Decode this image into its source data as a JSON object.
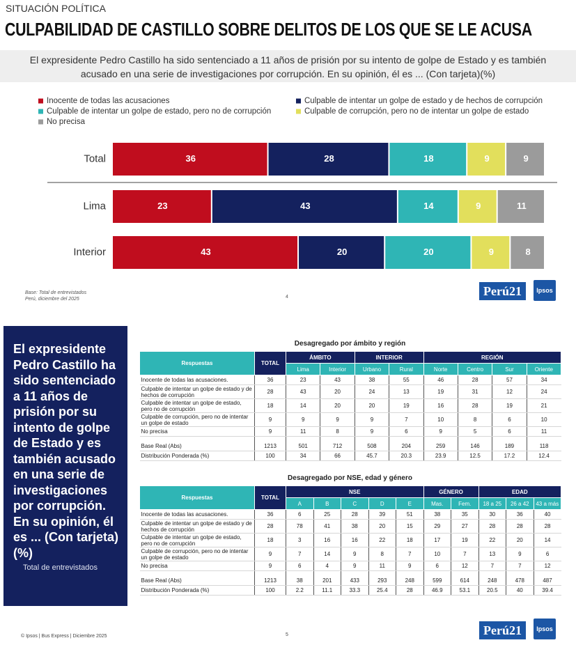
{
  "header": {
    "kicker": "SITUACIÓN POLÍTICA",
    "title": "CULPABILIDAD DE CASTILLO SOBRE DELITOS DE LOS QUE SE LE ACUSA",
    "question": "El expresidente Pedro Castillo ha sido sentenciado a 11 años de prisión por su intento de golpe de Estado y es también acusado en una serie de investigaciones por corrupción. En su opinión, él es ... (Con tarjeta)(%)"
  },
  "chart_data": {
    "type": "bar",
    "orientation": "horizontal",
    "stacked": true,
    "categories": [
      "Total",
      "Lima",
      "Interior"
    ],
    "series": [
      {
        "name": "Inocente de todas las acusaciones",
        "color": "#c00d1e",
        "values": [
          36,
          23,
          43
        ]
      },
      {
        "name": "Culpable de intentar un golpe de estado y de hechos de corrupción",
        "color": "#14215e",
        "values": [
          28,
          43,
          20
        ]
      },
      {
        "name": "Culpable de intentar un golpe de estado, pero no de corrupción",
        "color": "#2fb5b5",
        "values": [
          18,
          14,
          20
        ]
      },
      {
        "name": "Culpable de corrupción, pero no de intentar un golpe de estado",
        "color": "#e2df5c",
        "values": [
          9,
          9,
          9
        ]
      },
      {
        "name": "No precisa",
        "color": "#9b9b9b",
        "values": [
          9,
          11,
          8
        ]
      }
    ]
  },
  "slide1_footer": {
    "base": "Base: Total de entrevistados",
    "place": "Perú, diciembre del 2025",
    "page": "4"
  },
  "branding": {
    "peru21": "Perú21",
    "ipsos": "Ipsos"
  },
  "side_panel": {
    "question": "El expresidente Pedro Castillo ha sido sentenciado a 11 años de prisión por su intento de golpe de Estado y es también acusado en una serie de investigaciones por corrupción. En su opinión, él es ... (Con tarjeta) (%)",
    "base": "Total de entrevistados"
  },
  "table_region": {
    "title": "Desagregado por ámbito y región",
    "header": {
      "respuestas": "Respuestas",
      "total": "TOTAL"
    },
    "groups": [
      {
        "name": "ÁMBITO",
        "columns": [
          "Lima",
          "Interior"
        ]
      },
      {
        "name": "INTERIOR",
        "columns": [
          "Urbano",
          "Rural"
        ]
      },
      {
        "name": "REGIÓN",
        "columns": [
          "Norte",
          "Centro",
          "Sur",
          "Oriente"
        ]
      }
    ],
    "rows": [
      {
        "label": "Inocente de todas las acusaciones.",
        "values": [
          36,
          23,
          43,
          38,
          55,
          46,
          28,
          57,
          34
        ]
      },
      {
        "label": "Culpable de intentar un golpe de estado y de hechos de corrupción",
        "values": [
          28,
          43,
          20,
          24,
          13,
          19,
          31,
          12,
          24
        ]
      },
      {
        "label": "Culpable de intentar un golpe de estado, pero no de corrupción",
        "values": [
          18,
          14,
          20,
          20,
          19,
          16,
          28,
          19,
          21
        ]
      },
      {
        "label": "Culpable de corrupción, pero no de intentar un golpe de estado",
        "values": [
          9,
          9,
          9,
          9,
          7,
          10,
          8,
          6,
          10
        ]
      },
      {
        "label": "No precisa",
        "values": [
          9,
          11,
          8,
          9,
          6,
          9,
          5,
          6,
          11
        ]
      }
    ],
    "footer_rows": [
      {
        "label": "Base Real (Abs)",
        "values": [
          1213,
          501,
          712,
          508,
          204,
          259,
          146,
          189,
          118
        ]
      },
      {
        "label": "Distribución Ponderada (%)",
        "values": [
          100,
          34,
          66,
          45.7,
          20.3,
          23.9,
          12.5,
          17.2,
          12.4
        ]
      }
    ]
  },
  "table_nse": {
    "title": "Desagregado por NSE, edad y género",
    "header": {
      "respuestas": "Respuestas",
      "total": "TOTAL"
    },
    "groups": [
      {
        "name": "NSE",
        "columns": [
          "A",
          "B",
          "C",
          "D",
          "E"
        ]
      },
      {
        "name": "GÉNERO",
        "columns": [
          "Mas.",
          "Fem."
        ]
      },
      {
        "name": "EDAD",
        "columns": [
          "18 a 25",
          "26 a 42",
          "43 a más"
        ]
      }
    ],
    "rows": [
      {
        "label": "Inocente de todas las acusaciones.",
        "values": [
          36,
          6,
          25,
          28,
          39,
          51,
          38,
          35,
          30,
          36,
          40
        ]
      },
      {
        "label": "Culpable de intentar un golpe de estado y de hechos de corrupción",
        "values": [
          28,
          78,
          41,
          38,
          20,
          15,
          29,
          27,
          28,
          28,
          28
        ]
      },
      {
        "label": "Culpable de intentar un golpe de estado, pero no de corrupción",
        "values": [
          18,
          3,
          16,
          16,
          22,
          18,
          17,
          19,
          22,
          20,
          14
        ]
      },
      {
        "label": "Culpable de corrupción, pero no de intentar un golpe de estado",
        "values": [
          9,
          7,
          14,
          9,
          8,
          7,
          10,
          7,
          13,
          9,
          6
        ]
      },
      {
        "label": "No precisa",
        "values": [
          9,
          6,
          4,
          9,
          11,
          9,
          6,
          12,
          7,
          7,
          12
        ]
      }
    ],
    "footer_rows": [
      {
        "label": "Base Real (Abs)",
        "values": [
          1213,
          38,
          201,
          433,
          293,
          248,
          599,
          614,
          248,
          478,
          487
        ]
      },
      {
        "label": "Distribución Ponderada (%)",
        "values": [
          100,
          2.2,
          11.1,
          33.3,
          25.4,
          28,
          46.9,
          53.1,
          20.5,
          40,
          39.4
        ]
      }
    ]
  },
  "slide2_footer": {
    "source": "© Ipsos | Bus Express | Diciembre 2025",
    "page": "5"
  }
}
